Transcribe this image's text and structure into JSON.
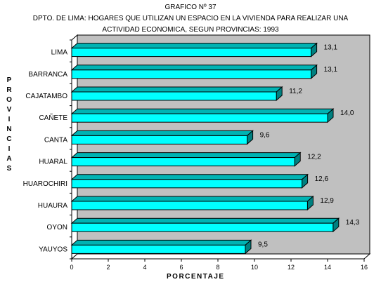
{
  "chart_data": {
    "type": "bar",
    "orientation": "horizontal",
    "three_d": true,
    "title_lines": [
      "GRAFICO Nº 37",
      "DPTO. DE LIMA: HOGARES QUE UTILIZAN UN ESPACIO EN LA VIVIENDA PARA REALIZAR UNA",
      "ACTIVIDAD ECONOMICA, SEGUN PROVINCIAS: 1993"
    ],
    "ylabel": "PROVINCIAS",
    "xlabel": "PORCENTAJE",
    "categories": [
      "LIMA",
      "BARRANCA",
      "CAJATAMBO",
      "CAÑETE",
      "CANTA",
      "HUARAL",
      "HUAROCHIRI",
      "HUAURA",
      "OYON",
      "YAUYOS"
    ],
    "values": [
      13.1,
      13.1,
      11.2,
      14.0,
      9.6,
      12.2,
      12.6,
      12.9,
      14.3,
      9.5
    ],
    "value_labels": [
      "13,1",
      "13,1",
      "11,2",
      "14,0",
      "9,6",
      "12,2",
      "12,6",
      "12,9",
      "14,3",
      "9,5"
    ],
    "xlim": [
      0,
      16
    ],
    "xticks": [
      "0",
      "2",
      "4",
      "6",
      "8",
      "10",
      "12",
      "14",
      "16"
    ],
    "grid": false,
    "colors": {
      "bar_front": "#00ffff",
      "bar_top": "#00b3b3",
      "bar_side": "#008080",
      "back_wall": "#c0c0c0",
      "outline": "#000000"
    }
  }
}
